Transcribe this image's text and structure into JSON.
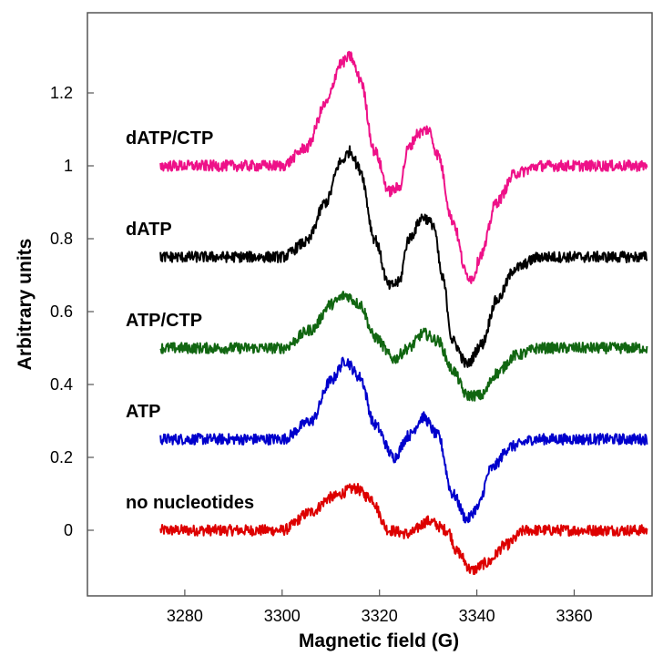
{
  "chart_data": {
    "type": "line",
    "title": "",
    "xlabel": "Magnetic field (G)",
    "ylabel": "Arbitrary units",
    "xlim": [
      3260,
      3376
    ],
    "ylim": [
      -0.18,
      1.42
    ],
    "xticks": [
      "3280",
      "3300",
      "3320",
      "3340",
      "3360"
    ],
    "yticks": [
      "0",
      "0.2",
      "0.4",
      "0.6",
      "0.8",
      "1",
      "1.2"
    ],
    "grid": false,
    "legend": "none",
    "series": [
      {
        "name": "no nucleotides",
        "color": "#dd0000",
        "baseline": 0,
        "x": [
          3275,
          3300,
          3306,
          3310,
          3315,
          3318,
          3322,
          3326,
          3330,
          3334,
          3336,
          3339,
          3342,
          3346,
          3350,
          3356,
          3375
        ],
        "y": [
          0,
          0,
          0.05,
          0.09,
          0.115,
          0.09,
          0.0,
          -0.01,
          0.025,
          0.0,
          -0.06,
          -0.11,
          -0.09,
          -0.04,
          0.0,
          0.0,
          0.0
        ]
      },
      {
        "name": "ATP",
        "color": "#0000cc",
        "baseline": 0.25,
        "x": [
          3275,
          3300,
          3306,
          3310,
          3313,
          3316,
          3319,
          3323,
          3326,
          3329,
          3332,
          3335,
          3338,
          3340,
          3343,
          3347,
          3352,
          3375
        ],
        "y": [
          0.25,
          0.25,
          0.3,
          0.41,
          0.465,
          0.42,
          0.29,
          0.2,
          0.26,
          0.31,
          0.26,
          0.1,
          0.03,
          0.06,
          0.17,
          0.23,
          0.25,
          0.25
        ]
      },
      {
        "name": "ATP/CTP",
        "color": "#116611",
        "baseline": 0.5,
        "x": [
          3275,
          3300,
          3306,
          3310,
          3313,
          3316,
          3319,
          3323,
          3326,
          3329,
          3332,
          3335,
          3338,
          3341,
          3344,
          3348,
          3353,
          3375
        ],
        "y": [
          0.5,
          0.5,
          0.55,
          0.62,
          0.645,
          0.62,
          0.53,
          0.47,
          0.5,
          0.54,
          0.52,
          0.44,
          0.37,
          0.37,
          0.43,
          0.48,
          0.5,
          0.5
        ]
      },
      {
        "name": "dATP",
        "color": "#000000",
        "baseline": 0.75,
        "x": [
          3275,
          3300,
          3305,
          3309,
          3312,
          3314,
          3316,
          3319,
          3322,
          3324,
          3326,
          3329,
          3331,
          3333,
          3335,
          3338,
          3341,
          3344,
          3348,
          3353,
          3375
        ],
        "y": [
          0.75,
          0.75,
          0.79,
          0.9,
          1.01,
          1.04,
          0.99,
          0.8,
          0.67,
          0.68,
          0.8,
          0.86,
          0.84,
          0.69,
          0.52,
          0.455,
          0.51,
          0.63,
          0.72,
          0.75,
          0.75
        ]
      },
      {
        "name": "dATP/CTP",
        "color": "#ee1188",
        "baseline": 1.0,
        "x": [
          3275,
          3300,
          3305,
          3309,
          3312,
          3314,
          3316,
          3319,
          3322,
          3324,
          3326,
          3328,
          3330,
          3332,
          3335,
          3338,
          3339,
          3341,
          3344,
          3348,
          3353,
          3375
        ],
        "y": [
          1.0,
          1.0,
          1.05,
          1.17,
          1.28,
          1.3,
          1.24,
          1.04,
          0.93,
          0.94,
          1.05,
          1.09,
          1.1,
          1.03,
          0.85,
          0.7,
          0.69,
          0.76,
          0.9,
          0.98,
          1.0,
          1.0
        ]
      }
    ]
  }
}
